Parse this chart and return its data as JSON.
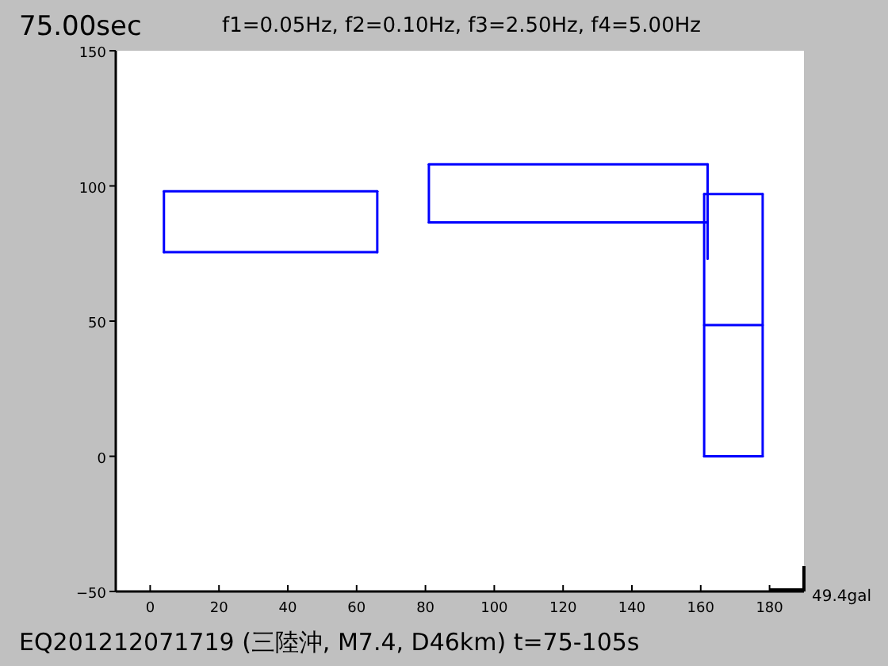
{
  "chart_data": {
    "type": "line",
    "title": "75.00sec",
    "subtitle": "f1=0.05Hz, f2=0.10Hz, f3=2.50Hz, f4=5.00Hz",
    "annotations": [
      "49.4gal",
      "EQ201212071719 (三陸沖, M7.4, D46km) t=75-105s"
    ],
    "series": [
      {
        "color": "#0000ff",
        "x": [
          4,
          66
        ],
        "values": [
          98,
          98
        ]
      },
      {
        "color": "#0000ff",
        "x": [
          4,
          66
        ],
        "values": [
          75.5,
          75.5
        ]
      },
      {
        "color": "#0000ff",
        "x": [
          4,
          4
        ],
        "values": [
          75.5,
          98
        ]
      },
      {
        "color": "#0000ff",
        "x": [
          66,
          66
        ],
        "values": [
          75.5,
          98
        ]
      },
      {
        "color": "#0000ff",
        "x": [
          81,
          162
        ],
        "values": [
          108,
          108
        ]
      },
      {
        "color": "#0000ff",
        "x": [
          81,
          162
        ],
        "values": [
          86.5,
          86.5
        ]
      },
      {
        "color": "#0000ff",
        "x": [
          81,
          81
        ],
        "values": [
          86.5,
          108
        ]
      },
      {
        "color": "#0000ff",
        "x": [
          162,
          162
        ],
        "values": [
          73,
          108
        ]
      },
      {
        "color": "#0000ff",
        "x": [
          161,
          178
        ],
        "values": [
          97,
          97
        ]
      },
      {
        "color": "#0000ff",
        "x": [
          161,
          178
        ],
        "values": [
          48.5,
          48.5
        ]
      },
      {
        "color": "#0000ff",
        "x": [
          161,
          178
        ],
        "values": [
          0,
          0
        ]
      },
      {
        "color": "#0000ff",
        "x": [
          161,
          161
        ],
        "values": [
          0,
          97
        ]
      },
      {
        "color": "#0000ff",
        "x": [
          178,
          178
        ],
        "values": [
          0,
          97
        ]
      }
    ],
    "xlim": [
      -10,
      190
    ],
    "ylim": [
      -50,
      150
    ],
    "xticks": [
      0,
      20,
      40,
      60,
      80,
      100,
      120,
      140,
      160,
      180
    ],
    "yticks": [
      -50,
      0,
      50,
      100,
      150
    ],
    "grid": false,
    "marker": "none",
    "line_style": "solid"
  }
}
